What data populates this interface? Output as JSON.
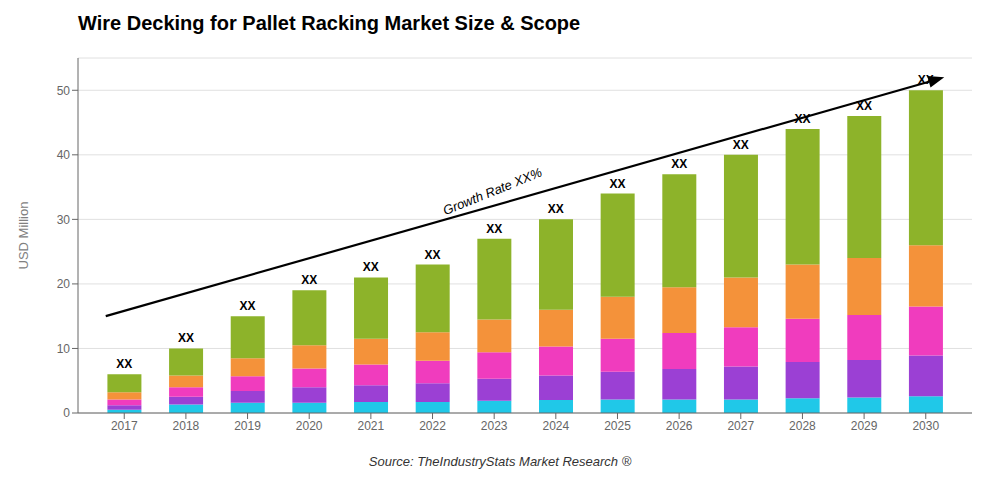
{
  "chart_data": {
    "type": "bar",
    "stacked": true,
    "title": "Wire Decking for Pallet Racking Market Size & Scope",
    "ylabel": "USD Million",
    "source": "Source: TheIndustryStats Market Research ®",
    "x": [
      2017,
      2018,
      2019,
      2020,
      2021,
      2022,
      2023,
      2024,
      2025,
      2026,
      2027,
      2028,
      2029,
      2030
    ],
    "series": [
      {
        "color": "#20c8e8",
        "values": [
          0.5,
          1.3,
          1.6,
          1.6,
          1.7,
          1.7,
          1.9,
          2.0,
          2.1,
          2.1,
          2.1,
          2.3,
          2.4,
          2.6
        ]
      },
      {
        "color": "#9b40d4",
        "values": [
          0.7,
          1.2,
          1.8,
          2.4,
          2.6,
          2.9,
          3.4,
          3.8,
          4.3,
          4.7,
          5.1,
          5.6,
          5.8,
          6.3
        ]
      },
      {
        "color": "#f03cbe",
        "values": [
          0.9,
          1.5,
          2.3,
          2.9,
          3.2,
          3.5,
          4.1,
          4.5,
          5.1,
          5.6,
          6.1,
          6.7,
          7.0,
          7.6
        ]
      },
      {
        "color": "#f4923a",
        "values": [
          1.1,
          1.8,
          2.8,
          3.6,
          4.0,
          4.4,
          5.1,
          5.7,
          6.5,
          7.1,
          7.7,
          8.4,
          8.8,
          9.5
        ]
      },
      {
        "color": "#8db32a",
        "values": [
          2.8,
          4.2,
          6.5,
          8.5,
          9.5,
          10.5,
          12.5,
          14.0,
          16.0,
          17.5,
          19.0,
          21.0,
          22.0,
          24.0
        ]
      }
    ],
    "totals": {
      "values": [
        6,
        10,
        15,
        19,
        21,
        23,
        27,
        30,
        34,
        37,
        40,
        44,
        46,
        50
      ],
      "value_labels": [
        "XX",
        "XX",
        "XX",
        "XX",
        "XX",
        "XX",
        "XX",
        "XX",
        "XX",
        "XX",
        "XX",
        "XX",
        "XX",
        "XX"
      ]
    },
    "arrow": {
      "x": [
        2016.7,
        2030.3
      ],
      "y": [
        15,
        52
      ]
    },
    "annotations": [
      {
        "text": "Growth Rate XX%",
        "x": 2023.0,
        "y": 27.5
      }
    ],
    "xlim": [
      2016.25,
      2030.75
    ],
    "xticks": [
      2017,
      2018,
      2019,
      2020,
      2021,
      2022,
      2023,
      2024,
      2025,
      2026,
      2027,
      2028,
      2029,
      2030
    ],
    "ylim": [
      0,
      55
    ],
    "yticks": [
      0,
      10,
      20,
      30,
      40,
      50
    ],
    "grid": true
  }
}
